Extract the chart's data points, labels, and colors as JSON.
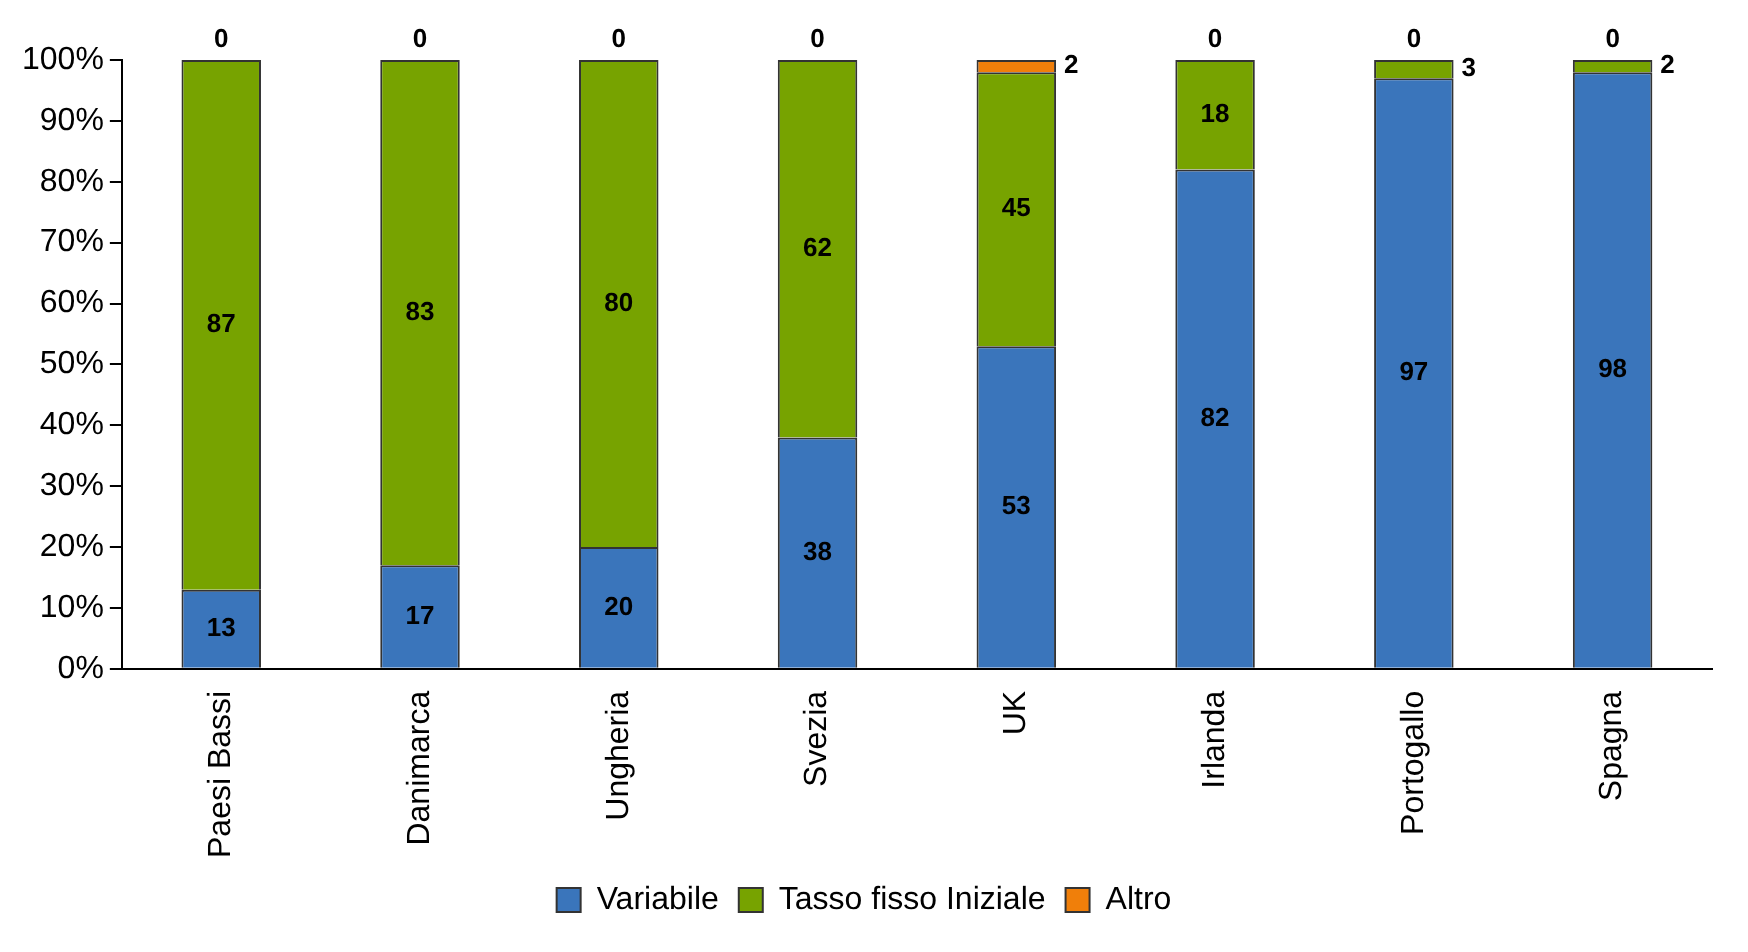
{
  "chart_data": {
    "type": "bar",
    "stacked": true,
    "categories": [
      "Paesi Bassi",
      "Danimarca",
      "Ungheria",
      "Svezia",
      "UK",
      "Irlanda",
      "Portogallo",
      "Spagna"
    ],
    "series": [
      {
        "name": "Variabile",
        "color": "#3a75bb",
        "values": [
          13,
          17,
          20,
          38,
          53,
          82,
          97,
          98
        ]
      },
      {
        "name": "Tasso fisso Iniziale",
        "color": "#77a300",
        "values": [
          87,
          83,
          80,
          62,
          45,
          18,
          3,
          2
        ]
      },
      {
        "name": "Altro",
        "color": "#f07f0a",
        "values": [
          0,
          0,
          0,
          0,
          2,
          0,
          0,
          0
        ]
      }
    ],
    "ylim": [
      0,
      100
    ],
    "yticks": [
      {
        "value": 0,
        "label": "0%"
      },
      {
        "value": 10,
        "label": "10%"
      },
      {
        "value": 20,
        "label": "20%"
      },
      {
        "value": 30,
        "label": "30%"
      },
      {
        "value": 40,
        "label": "40%"
      },
      {
        "value": 50,
        "label": "50%"
      },
      {
        "value": 60,
        "label": "60%"
      },
      {
        "value": 70,
        "label": "70%"
      },
      {
        "value": 80,
        "label": "80%"
      },
      {
        "value": 90,
        "label": "90%"
      },
      {
        "value": 100,
        "label": "100%"
      }
    ],
    "grid": false,
    "legend": "bottom",
    "data_labels": true
  }
}
